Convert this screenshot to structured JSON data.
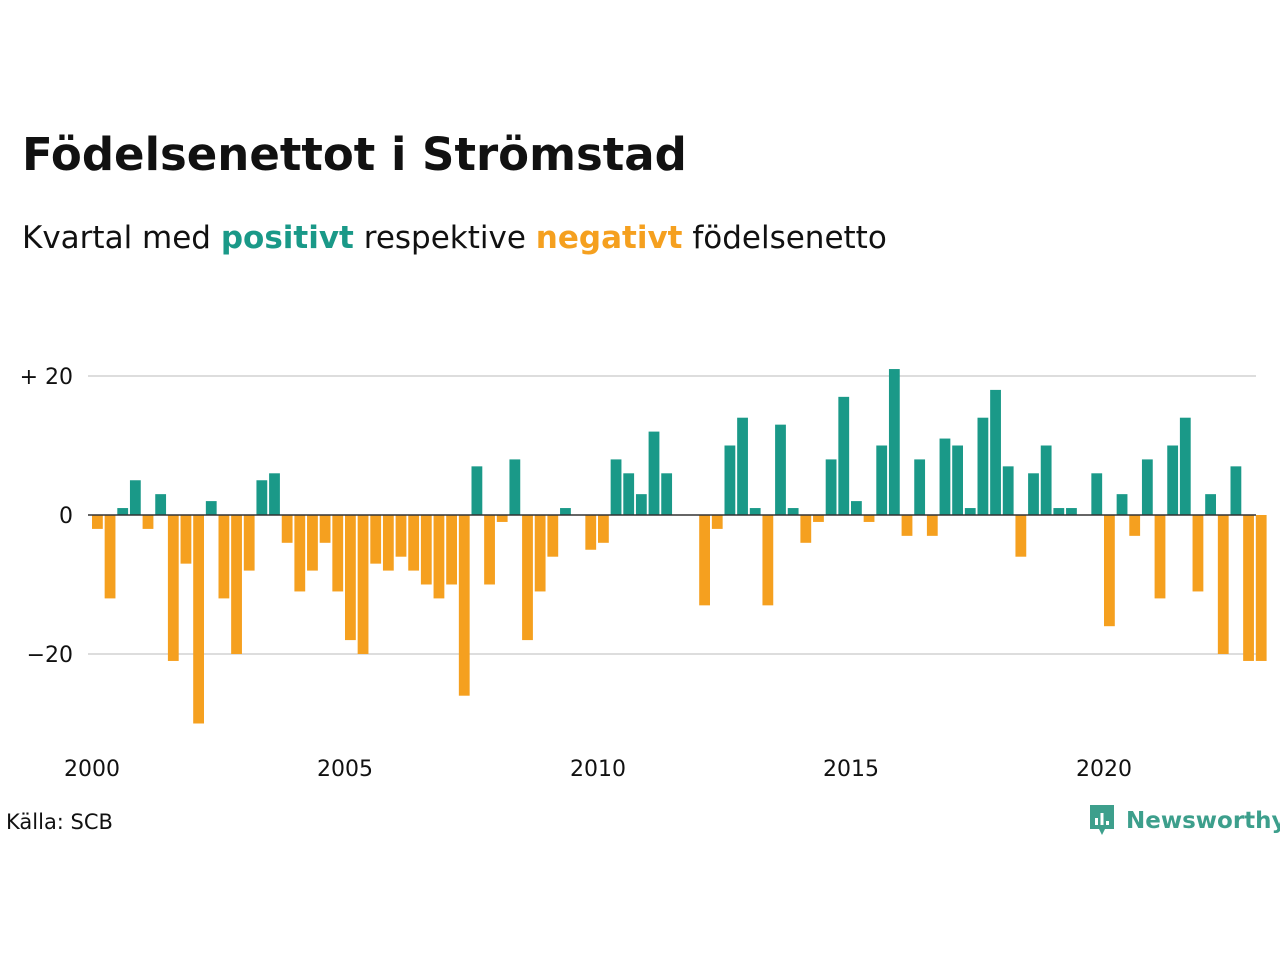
{
  "title": "Födelsenettot i Strömstad",
  "subtitle": {
    "prefix": "Kvartal med",
    "positive": "positivt",
    "middle": "respektive",
    "negative": "negativt",
    "suffix": "födelsenetto"
  },
  "source": "Källa: SCB",
  "brand": {
    "name": "Newsworthy",
    "icon": "newsworthy-logo-icon",
    "color": "#3d9f8c"
  },
  "colors": {
    "positive": "#1a9988",
    "negative": "#f5a01f",
    "grid": "#dddddd",
    "zero_line": "#333333"
  },
  "chart_data": {
    "type": "bar",
    "title": "Födelsenettot i Strömstad",
    "subtitle": "Kvartal med positivt respektive negativt födelsenetto",
    "xlabel": "",
    "ylabel": "",
    "x_range": [
      2000,
      2023
    ],
    "x_ticks": [
      "2000",
      "2005",
      "2010",
      "2015",
      "2020"
    ],
    "y_ticks": [
      {
        "value": 20,
        "label": "+ 20"
      },
      {
        "value": 0,
        "label": "0"
      },
      {
        "value": -20,
        "label": "−20"
      }
    ],
    "ylim": [
      -30,
      21
    ],
    "grid": true,
    "categories": [
      "2000 K1",
      "2000 K2",
      "2000 K3",
      "2000 K4",
      "2001 K1",
      "2001 K2",
      "2001 K3",
      "2001 K4",
      "2002 K1",
      "2002 K2",
      "2002 K3",
      "2002 K4",
      "2003 K1",
      "2003 K2",
      "2003 K3",
      "2003 K4",
      "2004 K1",
      "2004 K2",
      "2004 K3",
      "2004 K4",
      "2005 K1",
      "2005 K2",
      "2005 K3",
      "2005 K4",
      "2006 K1",
      "2006 K2",
      "2006 K3",
      "2006 K4",
      "2007 K1",
      "2007 K2",
      "2007 K3",
      "2007 K4",
      "2008 K1",
      "2008 K2",
      "2008 K3",
      "2008 K4",
      "2009 K1",
      "2009 K2",
      "2009 K3",
      "2009 K4",
      "2010 K1",
      "2010 K2",
      "2010 K3",
      "2010 K4",
      "2011 K1",
      "2011 K2",
      "2011 K3",
      "2011 K4",
      "2012 K1",
      "2012 K2",
      "2012 K3",
      "2012 K4",
      "2013 K1",
      "2013 K2",
      "2013 K3",
      "2013 K4",
      "2014 K1",
      "2014 K2",
      "2014 K3",
      "2014 K4",
      "2015 K1",
      "2015 K2",
      "2015 K3",
      "2015 K4",
      "2016 K1",
      "2016 K2",
      "2016 K3",
      "2016 K4",
      "2017 K1",
      "2017 K2",
      "2017 K3",
      "2017 K4",
      "2018 K1",
      "2018 K2",
      "2018 K3",
      "2018 K4",
      "2019 K1",
      "2019 K2",
      "2019 K3",
      "2019 K4",
      "2020 K1",
      "2020 K2",
      "2020 K3",
      "2020 K4",
      "2021 K1",
      "2021 K2",
      "2021 K3",
      "2021 K4",
      "2022 K1",
      "2022 K2",
      "2022 K3",
      "2022 K4",
      "2023 K1"
    ],
    "values": [
      -2,
      -12,
      1,
      5,
      -2,
      3,
      -21,
      -7,
      -30,
      2,
      -12,
      -20,
      -8,
      5,
      6,
      -4,
      -11,
      -8,
      -4,
      -11,
      -18,
      -20,
      -7,
      -8,
      -6,
      -8,
      -10,
      -12,
      -10,
      -26,
      7,
      -10,
      -1,
      8,
      -18,
      -11,
      -6,
      1,
      0,
      -5,
      -4,
      8,
      6,
      3,
      12,
      6,
      0,
      0,
      -13,
      -2,
      10,
      14,
      1,
      -13,
      13,
      1,
      -4,
      -1,
      8,
      17,
      2,
      -1,
      10,
      21,
      -3,
      8,
      -3,
      11,
      10,
      1,
      14,
      18,
      7,
      -6,
      6,
      10,
      1,
      1,
      0,
      6,
      -16,
      3,
      -3,
      8,
      -12,
      10,
      14,
      -11,
      3,
      -20,
      7,
      -21,
      -21
    ]
  }
}
